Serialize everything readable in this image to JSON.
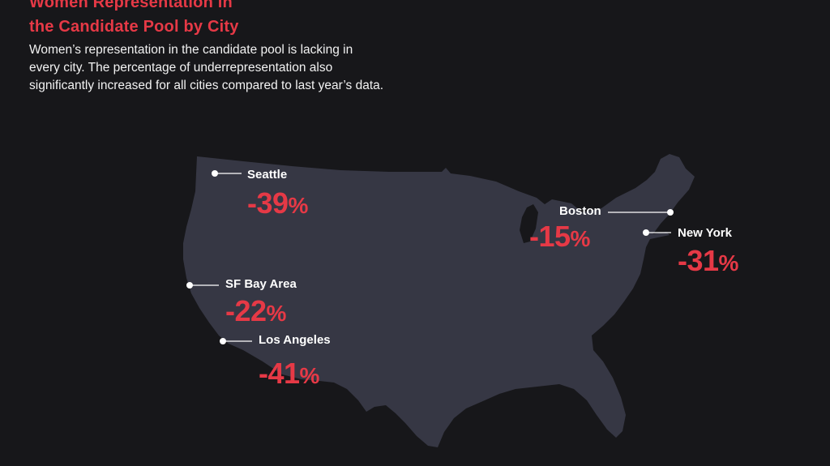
{
  "header": {
    "title_line1": "Women Representation in",
    "title_line2": "the Candidate Pool by City",
    "description": "Women’s representation in the candidate pool is lacking in every city. The percentage of underrepresentation also significantly increased for all cities compared to last year’s data."
  },
  "colors": {
    "background": "#17171a",
    "map_fill": "#363744",
    "accent": "#e63946",
    "label": "#ffffff"
  },
  "cities": {
    "seattle": {
      "label": "Seattle",
      "value": "-39",
      "unit": "%"
    },
    "boston": {
      "label": "Boston",
      "value": "-15",
      "unit": "%"
    },
    "new_york": {
      "label": "New York",
      "value": "-31",
      "unit": "%"
    },
    "sf_bay_area": {
      "label": "SF Bay Area",
      "value": "-22",
      "unit": "%"
    },
    "los_angeles": {
      "label": "Los Angeles",
      "value": "-41",
      "unit": "%"
    }
  }
}
